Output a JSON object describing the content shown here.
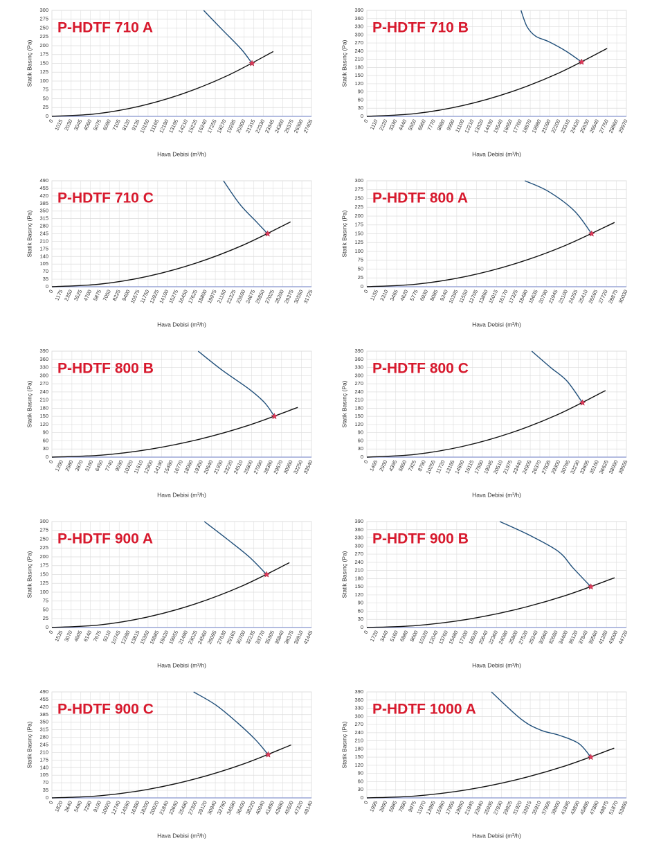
{
  "chart_data": [
    {
      "type": "line",
      "title": "P-HDTF 710 A",
      "xlabel": "Hava Debisi (m³/h)",
      "ylabel": "Statik Basınç (Pa)",
      "grid": true,
      "xlim": [
        0,
        27405
      ],
      "ylim": [
        0,
        300
      ],
      "xticks": [
        0,
        1015,
        2030,
        3045,
        4060,
        5075,
        6090,
        7105,
        8120,
        9135,
        10150,
        11165,
        12180,
        13195,
        14210,
        15225,
        16240,
        17255,
        18270,
        19285,
        20300,
        21315,
        22330,
        23345,
        24360,
        25375,
        26390,
        27405
      ],
      "yticks": [
        0,
        25,
        50,
        75,
        100,
        125,
        150,
        175,
        200,
        225,
        250,
        275,
        300
      ],
      "series": [
        {
          "color": "#1f4e79",
          "x": [
            16020,
            18000,
            20000,
            21130
          ],
          "values": [
            300,
            245,
            190,
            150
          ]
        },
        {
          "color": "#111111",
          "x": [
            0,
            4676,
            9352,
            14028,
            18704,
            23380
          ],
          "values": [
            0,
            7.3,
            29.4,
            66.1,
            117.5,
            183.6
          ]
        },
        {
          "color": "#e03a5a",
          "marker": "star",
          "x": [
            21130
          ],
          "values": [
            150
          ]
        }
      ]
    },
    {
      "type": "line",
      "title": "P-HDTF 710 B",
      "xlabel": "Hava Debisi (m³/h)",
      "ylabel": "Statik Basınç (Pa)",
      "grid": true,
      "xlim": [
        0,
        29970
      ],
      "ylim": [
        0,
        390
      ],
      "xticks": [
        0,
        1110,
        2220,
        3330,
        4440,
        5550,
        6660,
        7770,
        8880,
        9990,
        11100,
        12210,
        13320,
        14430,
        15540,
        16650,
        17760,
        18870,
        19980,
        21090,
        22200,
        23310,
        24420,
        25530,
        26640,
        27750,
        28860,
        29970
      ],
      "yticks": [
        0,
        30,
        60,
        90,
        120,
        150,
        180,
        210,
        240,
        270,
        300,
        330,
        360,
        390
      ],
      "series": [
        {
          "color": "#1f4e79",
          "x": [
            17800,
            18500,
            19500,
            21000,
            23000,
            24800
          ],
          "values": [
            390,
            330,
            295,
            275,
            240,
            200
          ]
        },
        {
          "color": "#111111",
          "x": [
            0,
            5550,
            11100,
            16650,
            22200,
            27750
          ],
          "values": [
            0,
            10,
            40,
            90,
            160,
            250
          ]
        },
        {
          "color": "#e03a5a",
          "marker": "star",
          "x": [
            24800
          ],
          "values": [
            200
          ]
        }
      ]
    },
    {
      "type": "line",
      "title": "P-HDTF 710 C",
      "xlabel": "Hava Debisi (m³/h)",
      "ylabel": "Statik Basınç (Pa)",
      "grid": true,
      "xlim": [
        0,
        31725
      ],
      "ylim": [
        0,
        490
      ],
      "xticks": [
        0,
        1175,
        2350,
        3525,
        4700,
        5875,
        7050,
        8225,
        9400,
        10575,
        11750,
        12925,
        14100,
        15275,
        16450,
        17625,
        18800,
        19975,
        21150,
        22325,
        23500,
        24675,
        25850,
        27025,
        28200,
        29375,
        30550,
        31725
      ],
      "yticks": [
        0,
        35,
        70,
        105,
        140,
        175,
        210,
        245,
        280,
        315,
        350,
        385,
        420,
        455,
        490
      ],
      "series": [
        {
          "color": "#1f4e79",
          "x": [
            20970,
            23000,
            25000,
            26370
          ],
          "values": [
            490,
            380,
            300,
            245
          ]
        },
        {
          "color": "#111111",
          "x": [
            0,
            5834,
            11668,
            17502,
            23336,
            29170
          ],
          "values": [
            0,
            12,
            48,
            108,
            192,
            300
          ]
        },
        {
          "color": "#e03a5a",
          "marker": "star",
          "x": [
            26370
          ],
          "values": [
            245
          ]
        }
      ]
    },
    {
      "type": "line",
      "title": "P-HDTF 800 A",
      "xlabel": "Hava Debisi (m³/h)",
      "ylabel": "Statik Basınç (Pa)",
      "grid": true,
      "xlim": [
        0,
        30030
      ],
      "ylim": [
        0,
        300
      ],
      "xticks": [
        0,
        1155,
        2310,
        3465,
        4620,
        5775,
        6930,
        8085,
        9240,
        10395,
        11550,
        12705,
        13860,
        15015,
        16170,
        17325,
        18480,
        19635,
        20790,
        21945,
        23100,
        24255,
        25410,
        26565,
        27720,
        28875,
        30030
      ],
      "yticks": [
        0,
        25,
        50,
        75,
        100,
        125,
        150,
        175,
        200,
        225,
        250,
        275,
        300
      ],
      "series": [
        {
          "color": "#1f4e79",
          "x": [
            18280,
            21000,
            24000,
            26010
          ],
          "values": [
            300,
            270,
            215,
            150
          ]
        },
        {
          "color": "#111111",
          "x": [
            0,
            5732,
            11464,
            17196,
            22928,
            28660
          ],
          "values": [
            0,
            7.3,
            29.1,
            65.5,
            116.5,
            182
          ]
        },
        {
          "color": "#e03a5a",
          "marker": "star",
          "x": [
            26010
          ],
          "values": [
            150
          ]
        }
      ]
    },
    {
      "type": "line",
      "title": "P-HDTF 800 B",
      "xlabel": "Hava Debisi (m³/h)",
      "ylabel": "Statik Basınç (Pa)",
      "grid": true,
      "xlim": [
        0,
        33540
      ],
      "ylim": [
        0,
        390
      ],
      "xticks": [
        0,
        1290,
        2580,
        3870,
        5160,
        6450,
        7740,
        9030,
        10320,
        11610,
        12900,
        14190,
        15480,
        16770,
        18060,
        19350,
        20640,
        21930,
        23220,
        24510,
        25800,
        27090,
        28380,
        29670,
        30960,
        32250,
        33540
      ],
      "yticks": [
        0,
        30,
        60,
        90,
        120,
        150,
        180,
        210,
        240,
        270,
        300,
        330,
        360,
        390
      ],
      "series": [
        {
          "color": "#1f4e79",
          "x": [
            18900,
            22000,
            25500,
            27500,
            28750
          ],
          "values": [
            390,
            320,
            250,
            200,
            150
          ]
        },
        {
          "color": "#111111",
          "x": [
            0,
            6354,
            12708,
            19062,
            25416,
            31770
          ],
          "values": [
            0,
            7.3,
            29.3,
            65.9,
            117.1,
            183
          ]
        },
        {
          "color": "#e03a5a",
          "marker": "star",
          "x": [
            28750
          ],
          "values": [
            150
          ]
        }
      ]
    },
    {
      "type": "line",
      "title": "P-HDTF 800 C",
      "xlabel": "Hava Debisi (m³/h)",
      "ylabel": "Statik Basınç (Pa)",
      "grid": true,
      "xlim": [
        0,
        39555
      ],
      "ylim": [
        0,
        390
      ],
      "xticks": [
        0,
        1465,
        2930,
        4395,
        5860,
        7325,
        8790,
        10255,
        11720,
        13185,
        14650,
        16115,
        17580,
        19045,
        20510,
        21975,
        23440,
        24905,
        26370,
        27835,
        29300,
        30765,
        32230,
        33695,
        35160,
        36625,
        38090,
        39555
      ],
      "yticks": [
        0,
        30,
        60,
        90,
        120,
        150,
        180,
        210,
        240,
        270,
        300,
        330,
        360,
        390
      ],
      "series": [
        {
          "color": "#1f4e79",
          "x": [
            25130,
            28000,
            30500,
            32870
          ],
          "values": [
            390,
            330,
            280,
            200
          ]
        },
        {
          "color": "#111111",
          "x": [
            0,
            7274,
            14548,
            21822,
            29096,
            36370
          ],
          "values": [
            0,
            9.8,
            39.2,
            88.2,
            156.8,
            245
          ]
        },
        {
          "color": "#e03a5a",
          "marker": "star",
          "x": [
            32870
          ],
          "values": [
            200
          ]
        }
      ]
    },
    {
      "type": "line",
      "title": "P-HDTF 900 A",
      "xlabel": "Hava Debisi (m³/h)",
      "ylabel": "Statik Basınç (Pa)",
      "grid": true,
      "xlim": [
        0,
        41445
      ],
      "ylim": [
        0,
        300
      ],
      "xticks": [
        0,
        1535,
        3070,
        4605,
        6140,
        7675,
        9210,
        10745,
        12280,
        13815,
        15350,
        16885,
        18420,
        19955,
        21490,
        23025,
        24560,
        26095,
        27630,
        29165,
        30700,
        32235,
        33770,
        35305,
        36840,
        38375,
        39910,
        41445
      ],
      "yticks": [
        0,
        25,
        50,
        75,
        100,
        125,
        150,
        175,
        200,
        225,
        250,
        275,
        300
      ],
      "series": [
        {
          "color": "#1f4e79",
          "x": [
            24340,
            28000,
            31500,
            34290
          ],
          "values": [
            300,
            250,
            200,
            150
          ]
        },
        {
          "color": "#111111",
          "x": [
            0,
            7586,
            15172,
            22758,
            30344,
            37930
          ],
          "values": [
            0,
            7.3,
            29.4,
            66.1,
            117.4,
            183.5
          ]
        },
        {
          "color": "#e03a5a",
          "marker": "star",
          "x": [
            34290
          ],
          "values": [
            150
          ]
        }
      ]
    },
    {
      "type": "line",
      "title": "P-HDTF 900 B",
      "xlabel": "Hava Debisi (m³/h)",
      "ylabel": "Statik Basınç (Pa)",
      "grid": true,
      "xlim": [
        0,
        44720
      ],
      "ylim": [
        0,
        390
      ],
      "xticks": [
        0,
        1720,
        3440,
        5160,
        6880,
        8600,
        10320,
        12040,
        13760,
        15480,
        17200,
        18920,
        20640,
        22360,
        24080,
        25800,
        27520,
        29240,
        30960,
        32680,
        34400,
        36120,
        37840,
        39560,
        41280,
        43000,
        44720
      ],
      "yticks": [
        0,
        30,
        60,
        90,
        120,
        150,
        180,
        210,
        240,
        270,
        300,
        330,
        360,
        390
      ],
      "series": [
        {
          "color": "#1f4e79",
          "x": [
            22900,
            28000,
            33000,
            35500,
            38600
          ],
          "values": [
            390,
            340,
            280,
            220,
            150
          ]
        },
        {
          "color": "#111111",
          "x": [
            0,
            8536,
            17072,
            25608,
            34144,
            42680
          ],
          "values": [
            0,
            7.3,
            29.3,
            65.9,
            117.1,
            183
          ]
        },
        {
          "color": "#e03a5a",
          "marker": "star",
          "x": [
            38600
          ],
          "values": [
            150
          ]
        }
      ]
    },
    {
      "type": "line",
      "title": "P-HDTF 900 C",
      "xlabel": "Hava Debisi (m³/h)",
      "ylabel": "Statik Basınç (Pa)",
      "grid": true,
      "xlim": [
        0,
        49140
      ],
      "ylim": [
        0,
        490
      ],
      "xticks": [
        0,
        1820,
        3640,
        5460,
        7280,
        9100,
        10920,
        12740,
        14560,
        16380,
        18200,
        20020,
        21840,
        23660,
        25480,
        27300,
        29120,
        30940,
        32760,
        34580,
        36400,
        38220,
        40040,
        41860,
        43680,
        45500,
        47320,
        49140
      ],
      "yticks": [
        0,
        35,
        70,
        105,
        140,
        175,
        210,
        245,
        280,
        315,
        350,
        385,
        420,
        455,
        490
      ],
      "series": [
        {
          "color": "#1f4e79",
          "x": [
            26820,
            31000,
            35000,
            38500,
            40950
          ],
          "values": [
            490,
            430,
            350,
            270,
            200
          ]
        },
        {
          "color": "#111111",
          "x": [
            0,
            9060,
            18120,
            27180,
            36240,
            45300
          ],
          "values": [
            0,
            9.8,
            39.2,
            88.2,
            156.8,
            245
          ]
        },
        {
          "color": "#e03a5a",
          "marker": "star",
          "x": [
            40950
          ],
          "values": [
            200
          ]
        }
      ]
    },
    {
      "type": "line",
      "title": "P-HDTF 1000 A",
      "xlabel": "Hava Debisi (m³/h)",
      "ylabel": "Statik Basınç (Pa)",
      "grid": true,
      "xlim": [
        0,
        53865
      ],
      "ylim": [
        0,
        390
      ],
      "xticks": [
        0,
        1995,
        3990,
        5985,
        7980,
        9975,
        11970,
        13965,
        15960,
        17955,
        19950,
        21945,
        23940,
        25935,
        27930,
        29925,
        31920,
        33915,
        35910,
        37905,
        39900,
        41895,
        43890,
        45885,
        47880,
        49875,
        51870,
        53865
      ],
      "yticks": [
        0,
        30,
        60,
        90,
        120,
        150,
        180,
        210,
        240,
        270,
        300,
        330,
        360,
        390
      ],
      "series": [
        {
          "color": "#1f4e79",
          "x": [
            25850,
            32000,
            36000,
            40000,
            44000,
            46480
          ],
          "values": [
            390,
            290,
            250,
            230,
            200,
            150
          ]
        },
        {
          "color": "#111111",
          "x": [
            0,
            10266,
            20532,
            30798,
            41064,
            51330
          ],
          "values": [
            0,
            7.3,
            29.3,
            65.9,
            117.1,
            183
          ]
        },
        {
          "color": "#e03a5a",
          "marker": "star",
          "x": [
            46480
          ],
          "values": [
            150
          ]
        }
      ]
    }
  ]
}
